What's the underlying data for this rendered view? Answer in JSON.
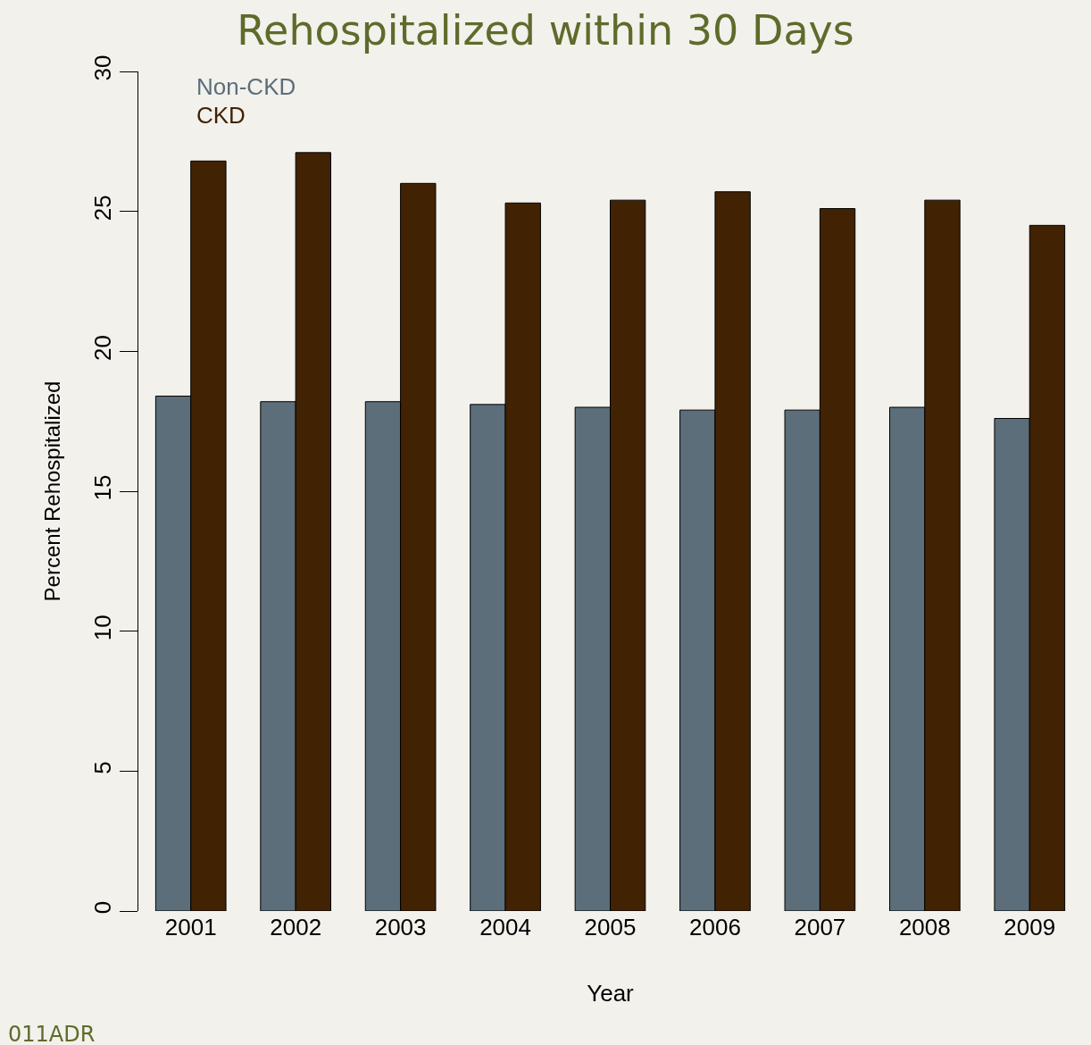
{
  "chart_data": {
    "type": "bar",
    "title": "Rehospitalized within 30 Days",
    "xlabel": "Year",
    "ylabel": "Percent Rehospitalized",
    "categories": [
      "2001",
      "2002",
      "2003",
      "2004",
      "2005",
      "2006",
      "2007",
      "2008",
      "2009"
    ],
    "series": [
      {
        "name": "Non-CKD",
        "color": "#5b6e7a",
        "values": [
          18.4,
          18.2,
          18.2,
          18.1,
          18.0,
          17.9,
          17.9,
          18.0,
          17.6
        ]
      },
      {
        "name": "CKD",
        "color": "#412203",
        "values": [
          26.8,
          27.1,
          26.0,
          25.3,
          25.4,
          25.7,
          25.1,
          25.4,
          24.5
        ]
      }
    ],
    "ylim": [
      0,
      30
    ],
    "yticks": [
      0,
      5,
      10,
      15,
      20,
      25,
      30
    ],
    "grid": false,
    "legend": "top left",
    "annotations": [
      "011ADR"
    ]
  }
}
